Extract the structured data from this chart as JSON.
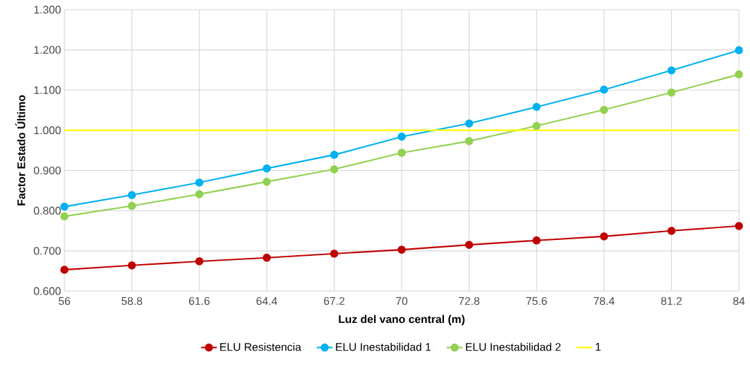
{
  "chart_data": {
    "type": "line",
    "xlabel": "Luz del vano central (m)",
    "ylabel": "Factor Estado Último",
    "x": [
      56,
      58.8,
      61.6,
      64.4,
      67.2,
      70,
      72.8,
      75.6,
      78.4,
      81.2,
      84
    ],
    "xlim": [
      56,
      84
    ],
    "xticks": [
      56,
      58.8,
      61.6,
      64.4,
      67.2,
      70,
      72.8,
      75.6,
      78.4,
      81.2,
      84
    ],
    "ylim": [
      0.6,
      1.3
    ],
    "yticks": [
      {
        "value": 0.6,
        "label": "0.600"
      },
      {
        "value": 0.7,
        "label": "0.700"
      },
      {
        "value": 0.8,
        "label": "0.800"
      },
      {
        "value": 0.9,
        "label": "0.900"
      },
      {
        "value": 1.0,
        "label": "1.000"
      },
      {
        "value": 1.1,
        "label": "1.100"
      },
      {
        "value": 1.2,
        "label": "1.200"
      },
      {
        "value": 1.3,
        "label": "1.300"
      }
    ],
    "grid": true,
    "legend": "bottom",
    "marker": "circle",
    "line_style": "solid",
    "series": [
      {
        "name": "ELU Resistencia",
        "color": "#c00000",
        "values": [
          0.653,
          0.664,
          0.674,
          0.683,
          0.693,
          0.703,
          0.715,
          0.726,
          0.736,
          0.75,
          0.762
        ]
      },
      {
        "name": "ELU Inestabilidad 1",
        "color": "#00b0f0",
        "values": [
          0.81,
          0.839,
          0.87,
          0.905,
          0.939,
          0.984,
          1.017,
          1.058,
          1.101,
          1.149,
          1.199
        ]
      },
      {
        "name": "ELU Inestabilidad 2",
        "color": "#92d050",
        "values": [
          0.786,
          0.812,
          0.841,
          0.872,
          0.903,
          0.944,
          0.973,
          1.011,
          1.051,
          1.094,
          1.139
        ]
      },
      {
        "name": "1",
        "color": "#ffff00",
        "marker": "none",
        "values": [
          1.0,
          1.0,
          1.0,
          1.0,
          1.0,
          1.0,
          1.0,
          1.0,
          1.0,
          1.0,
          1.0
        ]
      }
    ]
  }
}
